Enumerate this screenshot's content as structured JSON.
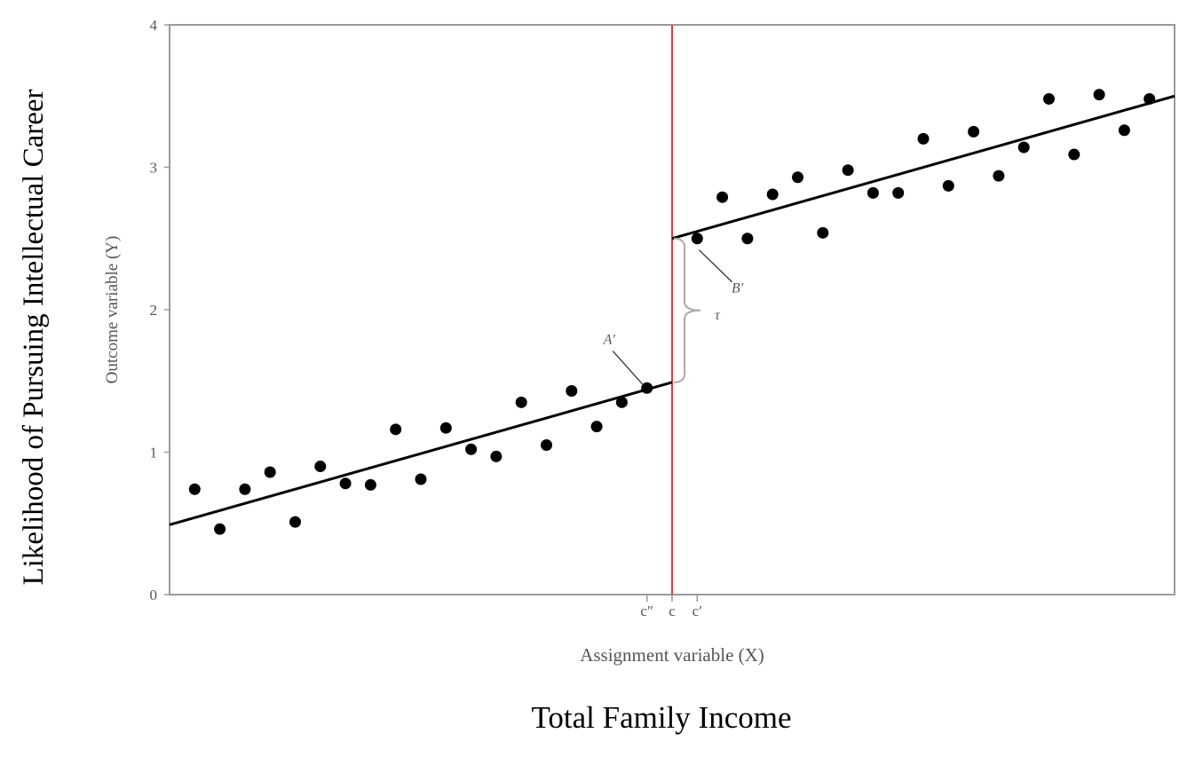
{
  "outer": {
    "ylabel": "Likelihood of  Pursuing Intellectual Career",
    "xlabel": "Total Family Income"
  },
  "chart_data": {
    "type": "scatter",
    "title": "",
    "xlabel": "Assignment variable (X)",
    "ylabel": "Outcome variable (Y)",
    "xlim": [
      0,
      40
    ],
    "ylim": [
      0,
      4
    ],
    "yticks": [
      "0",
      "1",
      "2",
      "3",
      "4"
    ],
    "xticks": [
      {
        "x": 19,
        "label": "c″"
      },
      {
        "x": 20,
        "label": "c"
      },
      {
        "x": 21,
        "label": "c′"
      }
    ],
    "grid": false,
    "cutoff": {
      "x": 20,
      "color": "#e8383d"
    },
    "series": [
      {
        "points": [
          [
            1,
            0.74
          ],
          [
            2,
            0.46
          ],
          [
            3,
            0.74
          ],
          [
            4,
            0.86
          ],
          [
            5,
            0.51
          ],
          [
            6,
            0.9
          ],
          [
            7,
            0.78
          ],
          [
            8,
            0.77
          ],
          [
            9,
            1.16
          ],
          [
            10,
            0.81
          ],
          [
            11,
            1.17
          ],
          [
            12,
            1.02
          ],
          [
            13,
            0.97
          ],
          [
            14,
            1.35
          ],
          [
            15,
            1.05
          ],
          [
            16,
            1.43
          ],
          [
            17,
            1.18
          ],
          [
            18,
            1.35
          ],
          [
            19,
            1.45
          ],
          [
            21,
            2.5
          ],
          [
            22,
            2.79
          ],
          [
            23,
            2.5
          ],
          [
            24,
            2.81
          ],
          [
            25,
            2.93
          ],
          [
            26,
            2.54
          ],
          [
            27,
            2.98
          ],
          [
            28,
            2.82
          ],
          [
            29,
            2.82
          ],
          [
            30,
            3.2
          ],
          [
            31,
            2.87
          ],
          [
            32,
            3.25
          ],
          [
            33,
            2.94
          ],
          [
            34,
            3.14
          ],
          [
            35,
            3.48
          ],
          [
            36,
            3.09
          ],
          [
            37,
            3.51
          ],
          [
            38,
            3.26
          ],
          [
            39,
            3.48
          ]
        ]
      }
    ],
    "fit_lines": [
      {
        "x": [
          0,
          20
        ],
        "y": [
          0.49,
          1.49
        ]
      },
      {
        "x": [
          20,
          40
        ],
        "y": [
          2.5,
          3.5
        ]
      }
    ],
    "annotations": [
      {
        "label": "A′",
        "x": 17.5,
        "y": 1.76
      },
      {
        "label": "B′",
        "x": 22.6,
        "y": 2.12
      },
      {
        "label": "τ",
        "x": 21.8,
        "y": 1.93
      }
    ],
    "colors": {
      "points": "#000000",
      "fit": "#000000",
      "axes": "#999999",
      "cutoff": "#e8383d"
    }
  }
}
